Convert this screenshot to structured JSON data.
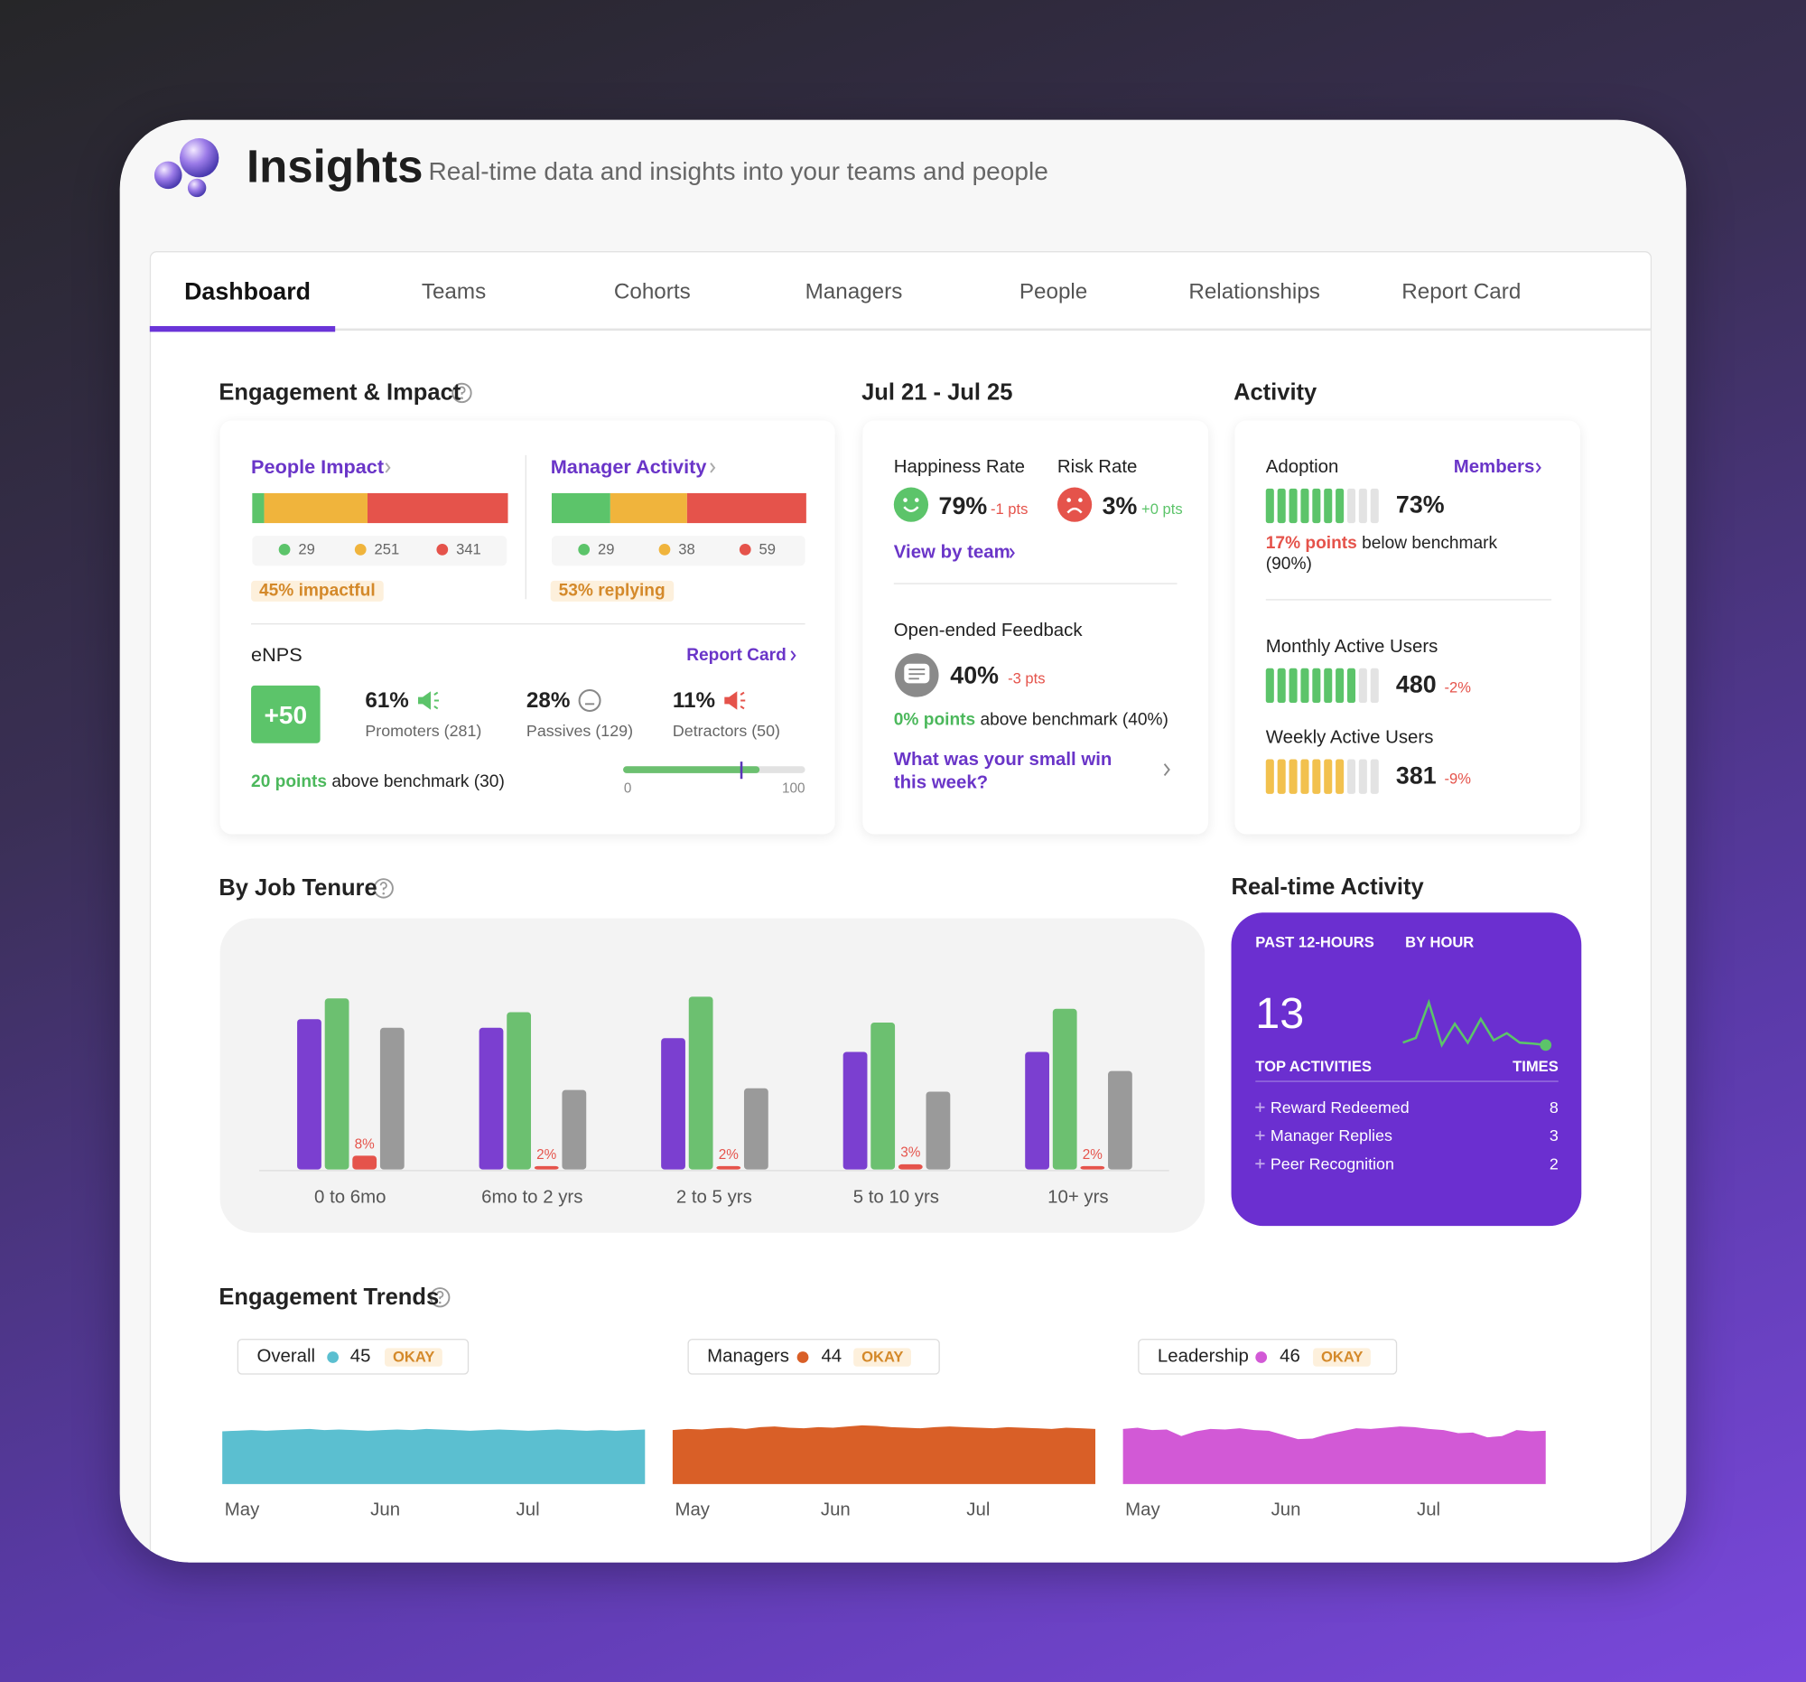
{
  "header": {
    "title": "Insights",
    "subtitle": "Real-time data and insights into your teams and people"
  },
  "tabs": [
    "Dashboard",
    "Teams",
    "Cohorts",
    "Managers",
    "People",
    "Relationships",
    "Report Card"
  ],
  "active_tab": 0,
  "engagement": {
    "title": "Engagement & Impact",
    "panels": [
      {
        "label": "People Impact",
        "segments": [
          {
            "value": 29,
            "color": "#5cc46a"
          },
          {
            "value": 251,
            "color": "#f0b43c"
          },
          {
            "value": 341,
            "color": "#e5534b"
          }
        ],
        "badge": "45% impactful"
      },
      {
        "label": "Manager Activity",
        "segments": [
          {
            "value": 29,
            "color": "#5cc46a"
          },
          {
            "value": 38,
            "color": "#f0b43c"
          },
          {
            "value": 59,
            "color": "#e5534b"
          }
        ],
        "badge": "53% replying"
      }
    ],
    "enps": {
      "label": "eNPS",
      "link": "Report Card",
      "score": "+50",
      "groups": [
        {
          "pct": "61%",
          "label": "Promoters (281)",
          "color": "#5cc46a"
        },
        {
          "pct": "28%",
          "label": "Passives (129)",
          "color": "#888888"
        },
        {
          "pct": "11%",
          "label": "Detractors (50)",
          "color": "#e5534b"
        }
      ],
      "highlight": "20 points",
      "benchmark": "above benchmark (30)",
      "gauge": {
        "min": 0,
        "max": 100,
        "fill": 75,
        "marker": 65
      }
    }
  },
  "week": {
    "title": "Jul 21 - Jul 25",
    "rates": [
      {
        "label": "Happiness Rate",
        "value": "79%",
        "delta": "-1 pts",
        "mood": "happy",
        "color": "#5cc46a",
        "delta_color": "#e5534b"
      },
      {
        "label": "Risk Rate",
        "value": "3%",
        "delta": "+0 pts",
        "mood": "sad",
        "color": "#e5534b",
        "delta_color": "#5cc46a"
      }
    ],
    "link": "View by team",
    "feedback": {
      "label": "Open-ended Feedback",
      "value": "40%",
      "delta": "-3 pts",
      "highlight": "0% points",
      "benchmark": "above benchmark (40%)",
      "question": "What was your small win this week?"
    }
  },
  "activity": {
    "title": "Activity",
    "link": "Members",
    "meters": [
      {
        "label": "Adoption",
        "value": "73%",
        "filled": 7,
        "segments": 10,
        "color": "#5cc46a"
      },
      {
        "label": "Monthly Active Users",
        "value": "480",
        "delta": "-2%",
        "filled": 8,
        "segments": 10,
        "color": "#5cc46a"
      },
      {
        "label": "Weekly Active Users",
        "value": "381",
        "delta": "-9%",
        "filled": 7,
        "segments": 10,
        "color": "#f2c14e"
      }
    ],
    "highlight": "17% points",
    "benchmark": "below benchmark (90%)"
  },
  "trends": {
    "title": "Engagement Trends"
  },
  "chart_data": [
    {
      "type": "bar",
      "title": "By Job Tenure",
      "categories": [
        "0 to 6mo",
        "6mo to 2 yrs",
        "2 to 5 yrs",
        "5 to 10 yrs",
        "10+  yrs"
      ],
      "ylim": [
        0,
        100
      ],
      "series": [
        {
          "color": "#7b3fd0",
          "values": [
            87,
            82,
            76,
            68,
            68
          ]
        },
        {
          "color": "#6cc070",
          "values": [
            99,
            91,
            100,
            85,
            93
          ]
        },
        {
          "color": "#e5534b",
          "values": [
            8,
            2,
            2,
            3,
            2
          ],
          "value_labels": [
            "8%",
            "2%",
            "2%",
            "3%",
            "2%"
          ]
        },
        {
          "color": "#9a9a9a",
          "values": [
            82,
            46,
            47,
            45,
            57
          ]
        }
      ]
    },
    {
      "type": "area",
      "name": "Overall",
      "color": "#5bbfd0",
      "score": 45,
      "status": "OKAY",
      "xlim": [
        0,
        29
      ],
      "ylim": [
        0,
        100
      ],
      "xticks": [
        {
          "value": 0,
          "label": "May"
        },
        {
          "value": 10,
          "label": "Jun"
        },
        {
          "value": 20,
          "label": "Jul"
        }
      ],
      "values": [
        88,
        89,
        90,
        89,
        90,
        91,
        92,
        90,
        91,
        90,
        89,
        90,
        91,
        90,
        92,
        91,
        90,
        89,
        90,
        91,
        90,
        89,
        90,
        91,
        90,
        89,
        90,
        89,
        90,
        91
      ]
    },
    {
      "type": "area",
      "name": "Managers",
      "color": "#d95f27",
      "score": 44,
      "status": "OKAY",
      "xlim": [
        0,
        29
      ],
      "ylim": [
        0,
        100
      ],
      "xticks": [
        {
          "value": 0,
          "label": "May"
        },
        {
          "value": 10,
          "label": "Jun"
        },
        {
          "value": 20,
          "label": "Jul"
        }
      ],
      "values": [
        90,
        92,
        91,
        93,
        94,
        92,
        95,
        96,
        94,
        93,
        95,
        94,
        96,
        98,
        97,
        95,
        94,
        93,
        95,
        96,
        95,
        94,
        93,
        95,
        94,
        93,
        92,
        94,
        93,
        92
      ]
    },
    {
      "type": "area",
      "name": "Leadership",
      "color": "#d259d6",
      "score": 46,
      "status": "OKAY",
      "xlim": [
        0,
        29
      ],
      "ylim": [
        0,
        100
      ],
      "xticks": [
        {
          "value": 0,
          "label": "May"
        },
        {
          "value": 10,
          "label": "Jun"
        },
        {
          "value": 20,
          "label": "Jul"
        }
      ],
      "values": [
        92,
        94,
        90,
        91,
        80,
        88,
        92,
        91,
        93,
        90,
        89,
        82,
        75,
        76,
        83,
        88,
        93,
        92,
        94,
        96,
        95,
        92,
        90,
        85,
        86,
        78,
        80,
        90,
        88,
        89
      ]
    },
    {
      "type": "line",
      "title": "Real-time Activity",
      "tabs": [
        "PAST 12-HOURS",
        "BY HOUR"
      ],
      "total": 13,
      "total_label": "TOP ACTIVITIES",
      "count_label": "TIMES",
      "rows": [
        {
          "name": "Reward Redeemed",
          "count": 8
        },
        {
          "name": "Manager Replies",
          "count": 3
        },
        {
          "name": "Peer Recognition",
          "count": 2
        }
      ],
      "color": "#5cc46a",
      "ylim": [
        0,
        10
      ],
      "values": [
        1,
        2,
        9.5,
        0.5,
        5,
        1,
        6,
        1.5,
        3,
        1,
        0.8,
        0.5
      ]
    }
  ]
}
